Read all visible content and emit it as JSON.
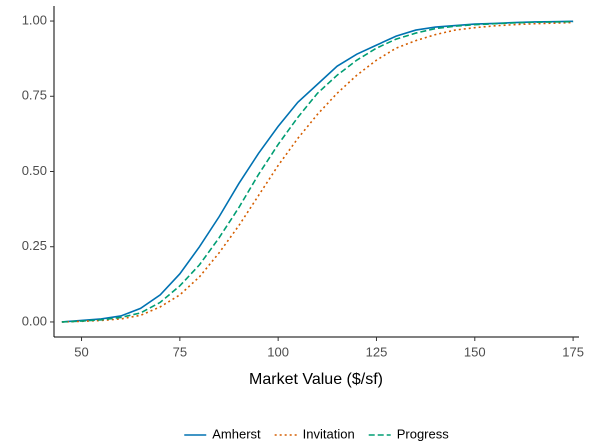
{
  "chart_data": {
    "type": "line",
    "x_label": "Market Value ($/sf)",
    "x": [
      45,
      50,
      55,
      60,
      65,
      70,
      75,
      80,
      85,
      90,
      95,
      100,
      105,
      110,
      115,
      120,
      125,
      130,
      135,
      140,
      145,
      150,
      155,
      160,
      165,
      170,
      175
    ],
    "series": [
      {
        "name": "Amherst",
        "color": "#0072B2",
        "dash": "solid",
        "values": [
          0.0,
          0.005,
          0.01,
          0.02,
          0.045,
          0.09,
          0.16,
          0.25,
          0.35,
          0.46,
          0.56,
          0.65,
          0.73,
          0.79,
          0.85,
          0.89,
          0.92,
          0.95,
          0.97,
          0.98,
          0.985,
          0.99,
          0.992,
          0.995,
          0.997,
          0.998,
          0.999
        ]
      },
      {
        "name": "Invitation",
        "color": "#D55E00",
        "dash": "dotted",
        "values": [
          0.0,
          0.002,
          0.005,
          0.01,
          0.022,
          0.05,
          0.09,
          0.15,
          0.23,
          0.32,
          0.42,
          0.52,
          0.61,
          0.69,
          0.76,
          0.82,
          0.87,
          0.91,
          0.935,
          0.955,
          0.97,
          0.978,
          0.984,
          0.988,
          0.991,
          0.993,
          0.995
        ]
      },
      {
        "name": "Progress",
        "color": "#009E73",
        "dash": "dashed",
        "values": [
          0.0,
          0.003,
          0.007,
          0.015,
          0.03,
          0.065,
          0.12,
          0.19,
          0.28,
          0.38,
          0.49,
          0.59,
          0.68,
          0.76,
          0.82,
          0.87,
          0.91,
          0.94,
          0.96,
          0.975,
          0.983,
          0.988,
          0.991,
          0.994,
          0.996,
          0.997,
          0.998
        ]
      }
    ],
    "xlim": [
      43,
      176.5
    ],
    "ylim": [
      -0.05,
      1.05
    ],
    "xticks": [
      50,
      75,
      100,
      125,
      150,
      175
    ],
    "yticks": [
      {
        "value": 0,
        "label": "0.00"
      },
      {
        "value": 0.25,
        "label": "0.25"
      },
      {
        "value": 0.5,
        "label": "0.50"
      },
      {
        "value": 0.75,
        "label": "0.75"
      },
      {
        "value": 1,
        "label": "1.00"
      }
    ],
    "legend_position": "bottom"
  }
}
